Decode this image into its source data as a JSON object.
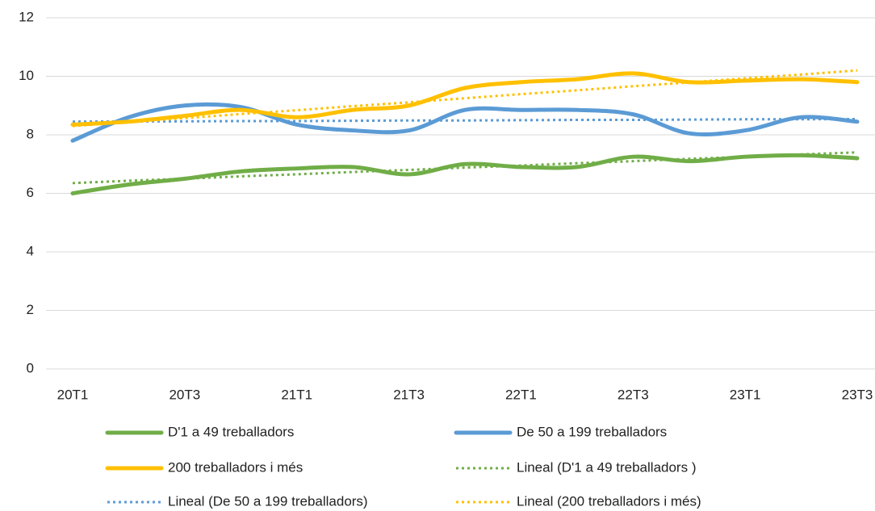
{
  "chart_data": {
    "type": "line",
    "categories": [
      "20T1",
      null,
      "20T3",
      null,
      "21T1",
      null,
      "21T3",
      null,
      "22T1",
      null,
      "22T3",
      null,
      "23T1",
      null,
      "23T3"
    ],
    "series": [
      {
        "name": "D'1 a 49 treballadors",
        "color": "#70ad47",
        "line_style": "solid",
        "values": [
          6.0,
          6.3,
          6.5,
          6.75,
          6.85,
          6.9,
          6.65,
          7.0,
          6.9,
          6.9,
          7.25,
          7.1,
          7.25,
          7.3,
          7.2
        ]
      },
      {
        "name": "De 50 a 199 treballadors",
        "color": "#5b9bd5",
        "line_style": "solid",
        "values": [
          7.8,
          8.6,
          9.0,
          8.95,
          8.35,
          8.15,
          8.15,
          8.85,
          8.85,
          8.85,
          8.7,
          8.05,
          8.15,
          8.6,
          8.45
        ]
      },
      {
        "name": "200 treballadors i més",
        "color": "#ffc000",
        "line_style": "solid",
        "values": [
          8.35,
          8.45,
          8.65,
          8.85,
          8.6,
          8.85,
          9.0,
          9.6,
          9.8,
          9.9,
          10.1,
          9.8,
          9.85,
          9.9,
          9.8
        ]
      },
      {
        "name": "Lineal (D'1 a 49 treballadors )",
        "color": "#70ad47",
        "line_style": "dotted",
        "values": [
          6.35,
          6.43,
          6.5,
          6.58,
          6.65,
          6.73,
          6.8,
          6.88,
          6.95,
          7.03,
          7.1,
          7.18,
          7.25,
          7.33,
          7.4
        ]
      },
      {
        "name": "Lineal (De 50 a 199 treballadors)",
        "color": "#5b9bd5",
        "line_style": "dotted",
        "values": [
          8.45,
          8.46,
          8.46,
          8.47,
          8.47,
          8.48,
          8.49,
          8.49,
          8.5,
          8.51,
          8.51,
          8.52,
          8.53,
          8.53,
          8.54
        ]
      },
      {
        "name": "Lineal (200 treballadors i més)",
        "color": "#ffc000",
        "line_style": "dotted",
        "values": [
          8.3,
          8.44,
          8.57,
          8.71,
          8.84,
          8.98,
          9.11,
          9.25,
          9.39,
          9.52,
          9.66,
          9.79,
          9.93,
          10.06,
          10.2
        ]
      }
    ],
    "ylim": [
      0,
      12
    ],
    "yticks": [
      0,
      2,
      4,
      6,
      8,
      10,
      12
    ],
    "grid": true,
    "legend": "bottom"
  }
}
